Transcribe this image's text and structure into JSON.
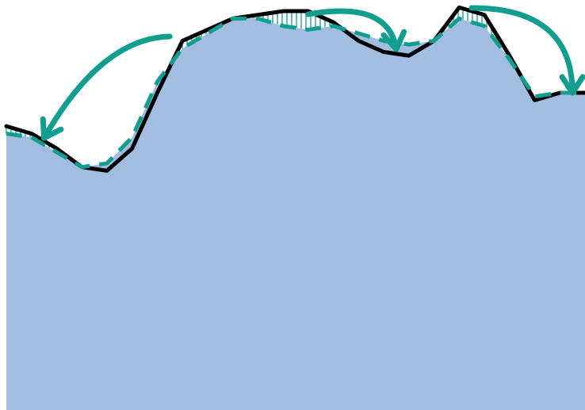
{
  "chart_data": {
    "type": "line",
    "title": "",
    "xlabel": "",
    "ylabel": "",
    "grid": false,
    "legend": "none",
    "x": [
      0,
      1,
      2,
      3,
      4,
      5,
      6,
      7,
      8,
      9,
      10,
      11,
      12,
      13,
      14,
      15,
      16,
      17,
      18,
      19,
      20,
      21,
      22,
      23
    ],
    "xlim": [
      0,
      23
    ],
    "ylim": [
      0,
      100
    ],
    "series": [
      {
        "role": "actual",
        "style": "solid",
        "values": [
          66,
          64,
          60,
          55,
          54,
          60,
          75,
          89,
          92,
          95,
          96,
          97,
          97,
          94,
          89,
          86,
          85,
          89,
          98,
          96,
          85,
          73,
          75,
          75
        ]
      },
      {
        "role": "smoothed",
        "style": "dashed",
        "values": [
          64,
          63,
          59,
          55,
          56,
          63,
          78,
          87,
          91,
          95,
          95,
          93,
          92,
          93,
          91,
          89,
          88,
          89,
          95,
          93,
          84,
          74,
          75,
          75
        ]
      }
    ],
    "area": {
      "series_index": 1
    },
    "annotations": [
      {
        "kind": "curved-arrow",
        "from_x": 7,
        "to_x": 1.5
      },
      {
        "kind": "curved-arrow",
        "from_x": 12.5,
        "to_x": 15.5
      },
      {
        "kind": "curved-arrow",
        "from_x": 19,
        "to_x": 22.5
      }
    ],
    "colors": {
      "area": "#a3bde0",
      "actual_line": "#000000",
      "smoothed_line": "#119e8f",
      "arrows": "#119e8f",
      "hatch": "#119e8f"
    }
  }
}
